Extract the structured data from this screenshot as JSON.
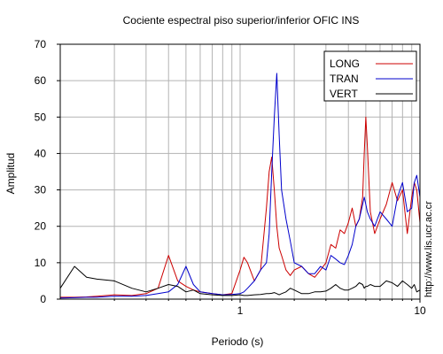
{
  "chart_data": {
    "type": "line",
    "title": "Cociente espectral piso superior/inferior  OFIC INS",
    "xlabel": "Periodo (s)",
    "ylabel": "Amplitud",
    "xscale": "log",
    "xlim": [
      0.1,
      10
    ],
    "ylim": [
      0,
      70
    ],
    "x_tick_labels": [
      {
        "value": 1,
        "label": "1"
      },
      {
        "value": 10,
        "label": "10"
      }
    ],
    "y_ticks": [
      0,
      10,
      20,
      30,
      40,
      50,
      60,
      70
    ],
    "grid": true,
    "legend_position": "top-right",
    "x": [
      0.1,
      0.12,
      0.14,
      0.16,
      0.2,
      0.25,
      0.3,
      0.35,
      0.4,
      0.45,
      0.5,
      0.55,
      0.6,
      0.7,
      0.8,
      0.9,
      1.0,
      1.05,
      1.1,
      1.2,
      1.3,
      1.4,
      1.45,
      1.5,
      1.55,
      1.6,
      1.65,
      1.7,
      1.8,
      1.9,
      2.0,
      2.2,
      2.4,
      2.6,
      2.8,
      3.0,
      3.2,
      3.4,
      3.6,
      3.8,
      4.0,
      4.2,
      4.4,
      4.6,
      4.8,
      4.9,
      5.0,
      5.1,
      5.3,
      5.6,
      6.0,
      6.5,
      7.0,
      7.5,
      8.0,
      8.5,
      9.0,
      9.3,
      9.6,
      10.0
    ],
    "series": [
      {
        "name": "LONG",
        "color": "#cc0000",
        "values": [
          0.5,
          0.5,
          0.6,
          0.8,
          1.2,
          1.0,
          1.5,
          3.0,
          12.0,
          5.0,
          3.5,
          2.5,
          2.0,
          1.5,
          1.2,
          1.5,
          8.0,
          11.5,
          10.0,
          5.0,
          8.0,
          25.0,
          35.0,
          39.0,
          30.0,
          20.0,
          14.0,
          12.0,
          8.0,
          6.5,
          8.0,
          9.0,
          7.0,
          6.0,
          8.0,
          10.0,
          15.0,
          14.0,
          19.0,
          18.0,
          21.0,
          25.0,
          20.0,
          22.0,
          28.0,
          40.0,
          50.0,
          42.0,
          24.0,
          18.0,
          22.0,
          26.0,
          32.0,
          27.0,
          30.0,
          18.0,
          28.0,
          32.0,
          30.0,
          21.0
        ]
      },
      {
        "name": "TRAN",
        "color": "#0000cc",
        "values": [
          0.3,
          0.4,
          0.5,
          0.5,
          0.8,
          0.8,
          1.0,
          1.5,
          2.0,
          4.0,
          9.0,
          4.0,
          2.0,
          1.5,
          1.2,
          1.3,
          1.5,
          2.0,
          3.0,
          5.0,
          8.0,
          10.0,
          18.0,
          35.0,
          50.0,
          62.0,
          45.0,
          30.0,
          22.0,
          16.0,
          10.0,
          9.0,
          7.0,
          7.0,
          9.0,
          8.0,
          12.0,
          11.0,
          10.0,
          9.5,
          12.0,
          15.0,
          20.0,
          22.0,
          26.0,
          28.0,
          26.0,
          24.0,
          22.0,
          20.0,
          24.0,
          22.0,
          20.0,
          28.0,
          32.0,
          24.0,
          25.0,
          32.0,
          34.0,
          28.0
        ]
      },
      {
        "name": "VERT",
        "color": "#000000",
        "values": [
          3.0,
          9.0,
          6.0,
          5.5,
          5.0,
          3.0,
          2.0,
          3.0,
          4.0,
          3.5,
          2.0,
          2.5,
          1.5,
          1.2,
          1.0,
          1.0,
          1.2,
          1.0,
          1.0,
          1.2,
          1.3,
          1.5,
          1.5,
          1.6,
          1.8,
          1.5,
          1.2,
          1.5,
          2.0,
          3.0,
          2.5,
          1.5,
          1.5,
          2.0,
          2.0,
          2.2,
          3.0,
          4.0,
          3.0,
          2.5,
          2.5,
          3.0,
          3.5,
          4.5,
          4.0,
          3.0,
          3.5,
          3.5,
          4.0,
          3.5,
          3.5,
          5.0,
          4.5,
          3.5,
          5.0,
          4.0,
          3.0,
          4.0,
          2.0,
          2.5
        ]
      }
    ]
  },
  "side_text": "http://www.lis.ucr.ac.cr"
}
